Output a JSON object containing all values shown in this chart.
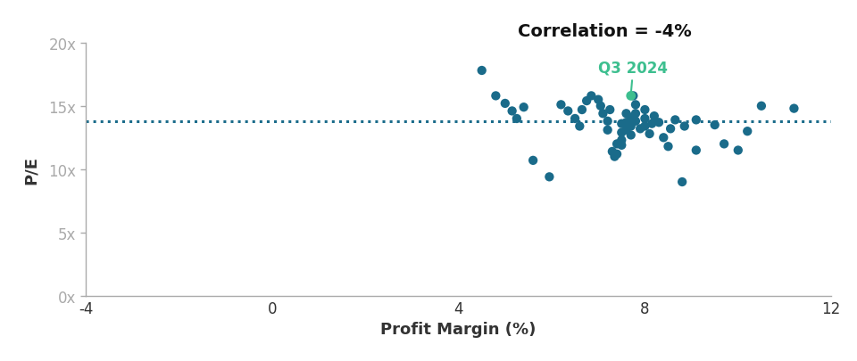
{
  "title": "Correlation = -4%",
  "xlabel": "Profit Margin (%)",
  "ylabel": "P/E",
  "xlim": [
    -4,
    12
  ],
  "ylim": [
    0,
    20
  ],
  "xticks": [
    -4,
    0,
    4,
    8,
    12
  ],
  "yticks": [
    0,
    5,
    10,
    15,
    20
  ],
  "ytick_labels": [
    "0x",
    "5x",
    "10x",
    "15x",
    "20x"
  ],
  "dotted_line_y": 13.8,
  "dot_color": "#1a6b8a",
  "highlight_color": "#3dbf8f",
  "highlight_x": 7.7,
  "highlight_y": 15.8,
  "highlight_label": "Q3 2024",
  "background_color": "#ffffff",
  "scatter_data": [
    [
      4.5,
      17.8
    ],
    [
      4.8,
      15.8
    ],
    [
      5.0,
      15.2
    ],
    [
      5.15,
      14.6
    ],
    [
      5.25,
      14.0
    ],
    [
      5.4,
      14.9
    ],
    [
      5.6,
      10.7
    ],
    [
      5.95,
      9.4
    ],
    [
      6.2,
      15.1
    ],
    [
      6.35,
      14.6
    ],
    [
      6.5,
      14.0
    ],
    [
      6.6,
      13.4
    ],
    [
      6.65,
      14.7
    ],
    [
      6.75,
      15.4
    ],
    [
      6.85,
      15.8
    ],
    [
      7.0,
      15.5
    ],
    [
      7.05,
      15.0
    ],
    [
      7.1,
      14.4
    ],
    [
      7.2,
      13.8
    ],
    [
      7.2,
      13.1
    ],
    [
      7.25,
      14.7
    ],
    [
      7.3,
      11.4
    ],
    [
      7.35,
      11.0
    ],
    [
      7.4,
      12.0
    ],
    [
      7.4,
      11.2
    ],
    [
      7.5,
      13.6
    ],
    [
      7.5,
      12.9
    ],
    [
      7.5,
      12.3
    ],
    [
      7.5,
      11.9
    ],
    [
      7.6,
      14.4
    ],
    [
      7.6,
      13.7
    ],
    [
      7.6,
      13.1
    ],
    [
      7.7,
      14.1
    ],
    [
      7.7,
      13.4
    ],
    [
      7.7,
      12.7
    ],
    [
      7.75,
      15.8
    ],
    [
      7.8,
      15.1
    ],
    [
      7.8,
      14.4
    ],
    [
      7.8,
      13.8
    ],
    [
      7.9,
      13.2
    ],
    [
      8.0,
      14.7
    ],
    [
      8.0,
      14.0
    ],
    [
      8.0,
      13.4
    ],
    [
      8.1,
      12.8
    ],
    [
      8.15,
      13.6
    ],
    [
      8.2,
      14.2
    ],
    [
      8.3,
      13.7
    ],
    [
      8.4,
      12.5
    ],
    [
      8.5,
      11.8
    ],
    [
      8.55,
      13.2
    ],
    [
      8.65,
      13.9
    ],
    [
      8.8,
      9.0
    ],
    [
      8.85,
      13.4
    ],
    [
      9.1,
      11.5
    ],
    [
      9.1,
      13.9
    ],
    [
      9.5,
      13.5
    ],
    [
      9.7,
      12.0
    ],
    [
      10.0,
      11.5
    ],
    [
      10.2,
      13.0
    ],
    [
      10.5,
      15.0
    ],
    [
      11.2,
      14.8
    ]
  ]
}
